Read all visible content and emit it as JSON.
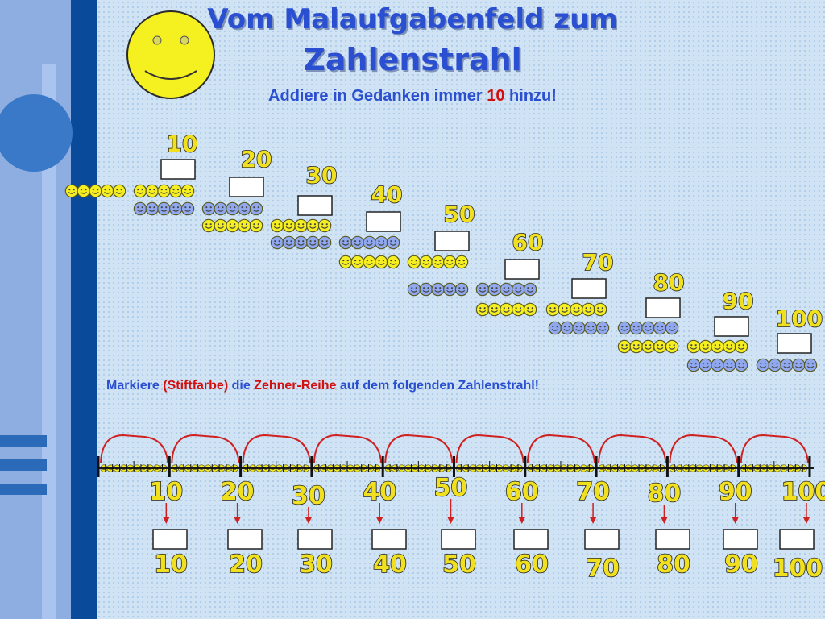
{
  "slide": {
    "title_line1": "Vom Malaufgabenfeld zum",
    "title_line2": "Zahlenstrahl",
    "subtitle_before": "Addiere in Gedanken immer ",
    "subtitle_highlight": "10",
    "subtitle_after": " hinzu!",
    "instruction_p1": "Markiere ",
    "instruction_p2": "(Stiftfarbe)",
    "instruction_p3": " die ",
    "instruction_p4": "Zehner-Reihe",
    "instruction_p5": " auf dem folgenden Zahlenstrahl!"
  },
  "staircase_labels": [
    "10",
    "20",
    "30",
    "40",
    "50",
    "60",
    "70",
    "80",
    "90",
    "100"
  ],
  "numberline_top_labels": [
    "10",
    "20",
    "30",
    "40",
    "50",
    "60",
    "70",
    "80",
    "90",
    "100"
  ],
  "numberline_bottom_labels": [
    "10",
    "20",
    "30",
    "40",
    "50",
    "60",
    "70",
    "80",
    "90",
    "100"
  ],
  "colors": {
    "accent_blue": "#2a4fd0",
    "highlight_red": "#d21010",
    "label_yellow": "#f0e020",
    "smiley_yellow": "#f5ee20",
    "smiley_blue": "#8fa8f0",
    "arc_red": "#d02020"
  },
  "icons": {
    "big_face": "smiley-face-icon",
    "small_face": "smiley-face-icon"
  }
}
